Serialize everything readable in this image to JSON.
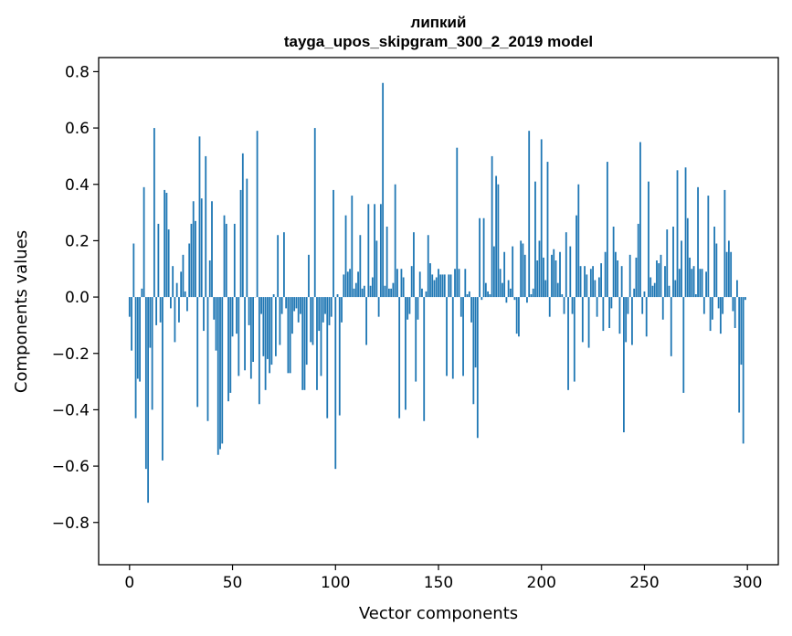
{
  "chart_data": {
    "type": "bar",
    "title_line1": "липкий",
    "title_line2": "tayga_upos_skipgram_300_2_2019 model",
    "xlabel": "Vector components",
    "ylabel": "Components values",
    "xlim": [
      -15,
      315
    ],
    "ylim": [
      -0.95,
      0.85
    ],
    "xticks": [
      0,
      50,
      100,
      150,
      200,
      250,
      300
    ],
    "yticks": [
      -0.8,
      -0.6,
      -0.4,
      -0.2,
      0.0,
      0.2,
      0.4,
      0.6,
      0.8
    ],
    "xtick_labels": [
      "0",
      "50",
      "100",
      "150",
      "200",
      "250",
      "300"
    ],
    "ytick_labels": [
      "−0.8",
      "−0.6",
      "−0.4",
      "−0.2",
      "0.0",
      "0.2",
      "0.4",
      "0.6",
      "0.8"
    ],
    "bar_color": "#1f77b4",
    "values": [
      -0.07,
      -0.19,
      0.19,
      -0.43,
      -0.29,
      -0.3,
      0.03,
      0.39,
      -0.61,
      -0.73,
      -0.18,
      -0.4,
      0.6,
      -0.1,
      0.26,
      -0.09,
      -0.58,
      0.38,
      0.37,
      0.24,
      -0.04,
      0.11,
      -0.16,
      0.05,
      -0.09,
      0.09,
      0.15,
      0.02,
      -0.05,
      0.19,
      0.26,
      0.34,
      0.27,
      -0.39,
      0.57,
      0.35,
      -0.12,
      0.5,
      -0.44,
      0.13,
      0.34,
      -0.08,
      -0.19,
      -0.56,
      -0.54,
      -0.52,
      0.29,
      0.26,
      -0.37,
      -0.34,
      -0.14,
      0.26,
      -0.13,
      -0.28,
      0.38,
      0.51,
      -0.26,
      0.42,
      -0.1,
      -0.29,
      -0.23,
      0.0,
      0.59,
      -0.38,
      -0.06,
      -0.21,
      -0.33,
      -0.22,
      -0.27,
      -0.24,
      0.01,
      -0.21,
      0.22,
      -0.17,
      -0.06,
      0.23,
      -0.04,
      -0.27,
      -0.27,
      -0.13,
      -0.05,
      -0.04,
      -0.09,
      -0.06,
      -0.33,
      -0.33,
      -0.24,
      0.15,
      -0.16,
      -0.17,
      0.6,
      -0.33,
      -0.12,
      -0.28,
      -0.09,
      -0.06,
      -0.43,
      -0.1,
      -0.07,
      0.38,
      -0.61,
      0.01,
      -0.42,
      -0.09,
      0.08,
      0.29,
      0.09,
      0.1,
      0.36,
      0.03,
      0.05,
      0.09,
      0.22,
      0.03,
      0.04,
      -0.17,
      0.33,
      0.04,
      0.07,
      0.33,
      0.2,
      -0.07,
      0.33,
      0.76,
      0.04,
      0.25,
      0.03,
      0.03,
      0.05,
      0.4,
      0.1,
      -0.43,
      0.1,
      0.07,
      -0.4,
      -0.08,
      -0.06,
      0.11,
      0.23,
      -0.3,
      -0.08,
      0.09,
      0.03,
      -0.44,
      0.02,
      0.22,
      0.12,
      0.08,
      0.06,
      0.07,
      0.1,
      0.08,
      0.08,
      0.08,
      -0.28,
      0.08,
      0.08,
      -0.29,
      0.1,
      0.53,
      0.1,
      -0.07,
      -0.28,
      0.1,
      0.01,
      0.02,
      -0.09,
      -0.38,
      -0.25,
      -0.5,
      0.28,
      -0.01,
      0.28,
      0.05,
      0.02,
      0.01,
      0.5,
      0.18,
      0.43,
      0.4,
      0.1,
      0.05,
      0.16,
      -0.02,
      0.06,
      0.03,
      0.18,
      -0.01,
      -0.13,
      -0.14,
      0.2,
      0.19,
      0.15,
      -0.02,
      0.59,
      0.01,
      0.03,
      0.41,
      0.13,
      0.2,
      0.56,
      0.14,
      0.06,
      0.48,
      -0.07,
      0.15,
      0.17,
      0.13,
      0.05,
      0.16,
      0.01,
      -0.06,
      0.23,
      -0.33,
      0.18,
      -0.06,
      -0.3,
      0.29,
      0.4,
      0.11,
      -0.16,
      0.11,
      0.08,
      -0.18,
      0.1,
      0.11,
      0.06,
      -0.07,
      0.07,
      0.12,
      -0.12,
      0.16,
      0.48,
      -0.11,
      -0.04,
      0.25,
      0.16,
      0.13,
      -0.13,
      0.11,
      -0.48,
      -0.16,
      -0.06,
      0.15,
      -0.17,
      0.03,
      0.14,
      0.26,
      0.55,
      -0.06,
      0.02,
      -0.14,
      0.41,
      0.07,
      0.04,
      0.05,
      0.13,
      0.12,
      0.15,
      -0.08,
      0.11,
      0.24,
      0.04,
      -0.21,
      0.25,
      0.06,
      0.45,
      0.1,
      0.2,
      -0.34,
      0.46,
      0.28,
      0.14,
      0.1,
      0.11,
      0.01,
      0.39,
      0.1,
      0.1,
      -0.06,
      0.09,
      0.36,
      -0.12,
      -0.08,
      0.25,
      0.19,
      -0.04,
      -0.13,
      -0.06,
      0.38,
      0.16,
      0.2,
      0.16,
      -0.05,
      -0.11,
      0.06,
      -0.41,
      -0.24,
      -0.52,
      -0.01
    ]
  }
}
